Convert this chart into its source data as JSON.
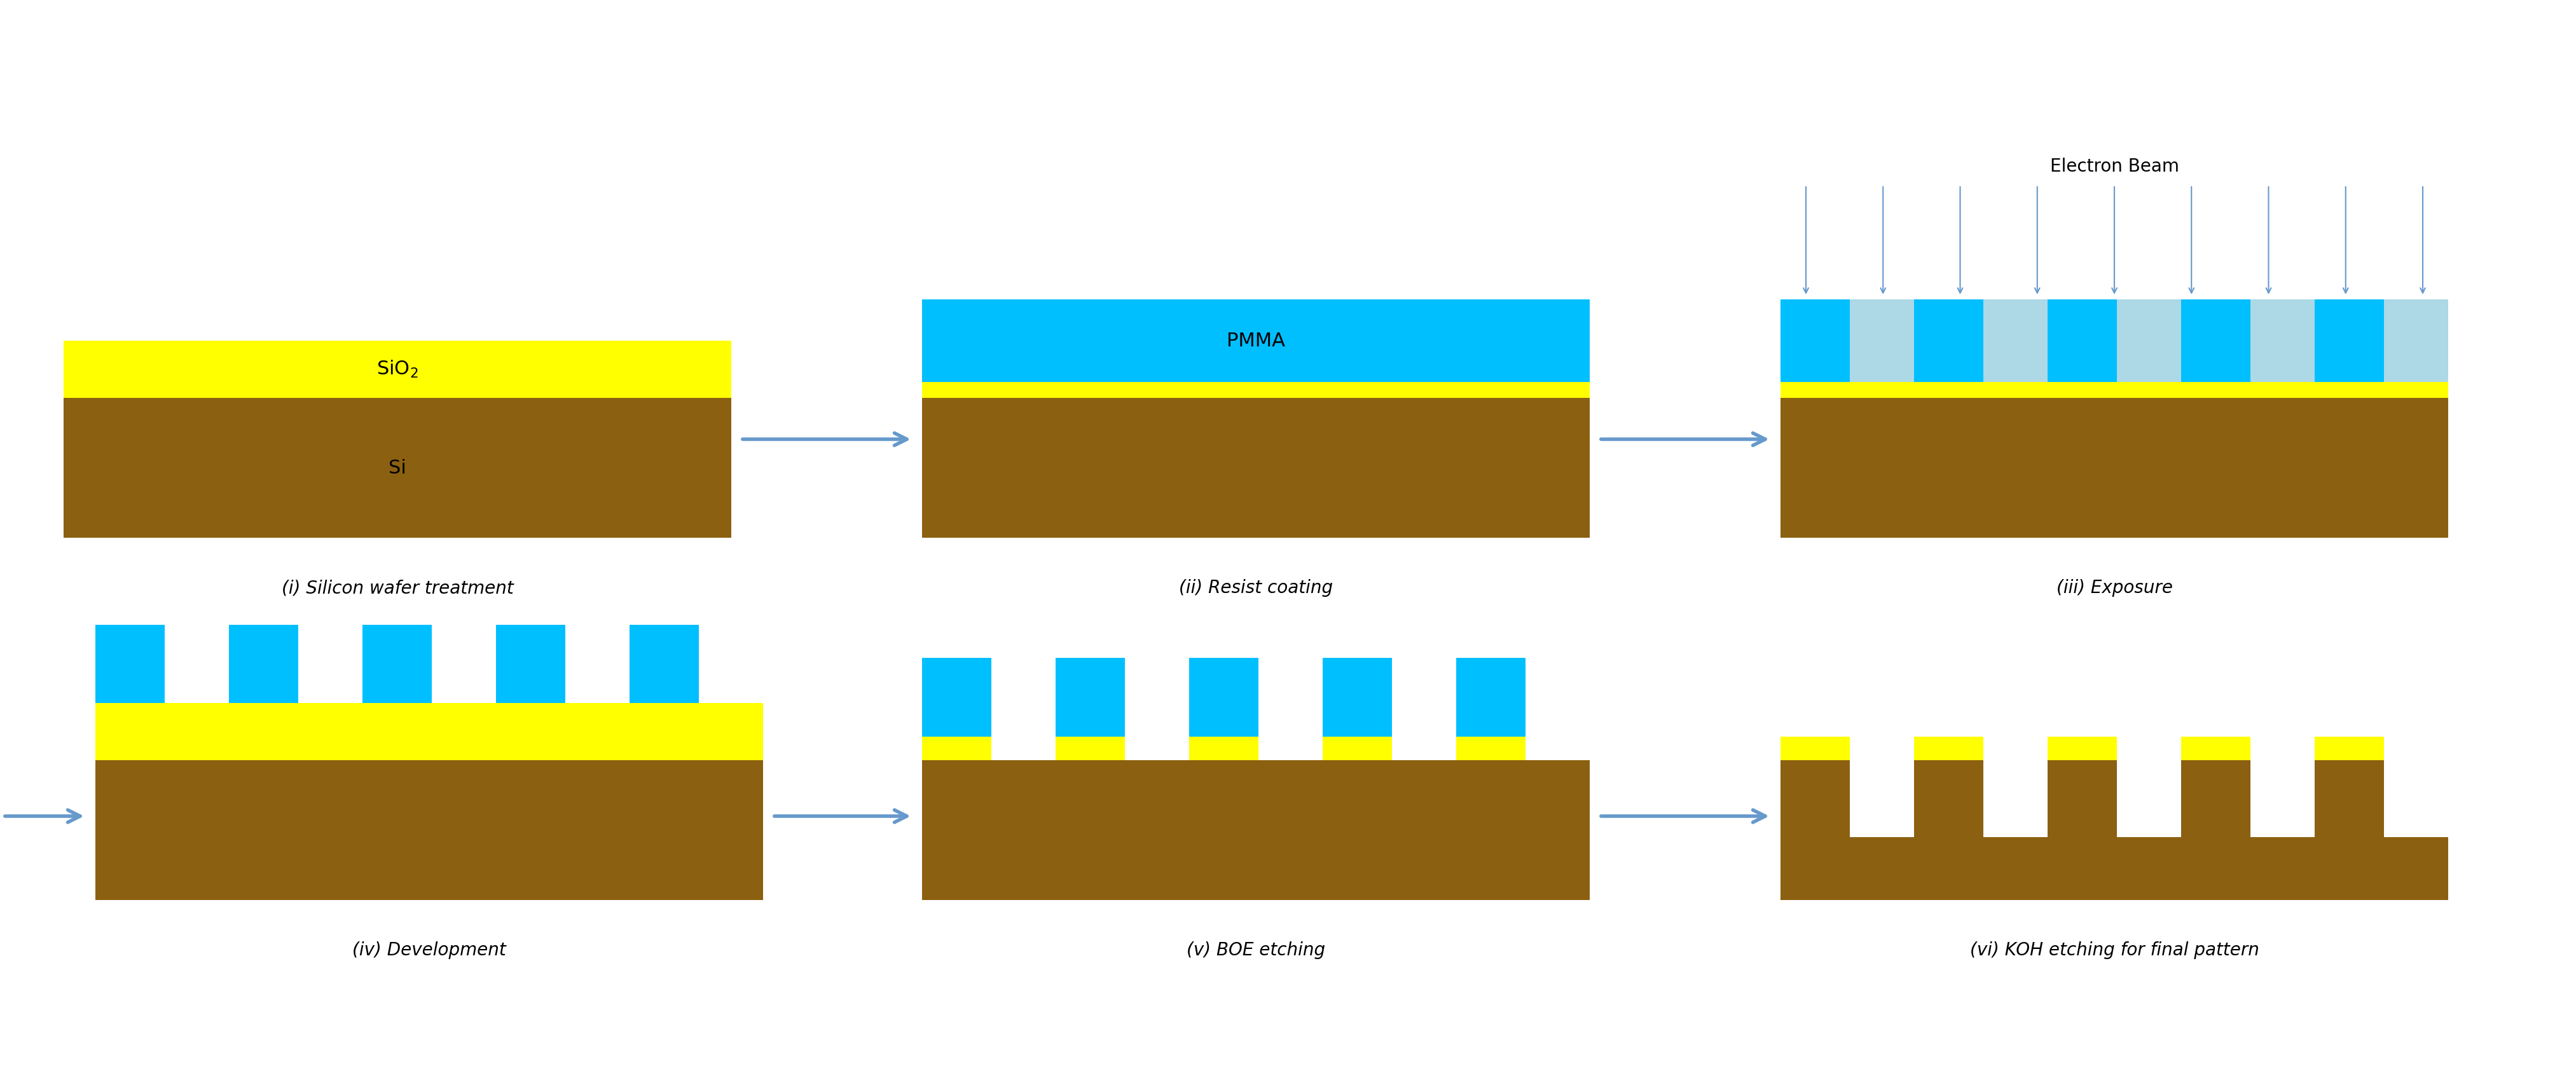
{
  "bg_color": "#ffffff",
  "colors": {
    "sio2": "#ffff00",
    "si": "#8B6010",
    "pmma": "#00BFFF",
    "pmma_exposed": "#ADD8E6",
    "arrow": "#6699CC",
    "text": "#000000"
  },
  "steps": [
    "(i) Silicon wafer treatment",
    "(ii) Resist coating",
    "(iii) Exposure",
    "(iv) Development",
    "(v) BOE etching",
    "(vi) KOH etching for final pattern"
  ],
  "font_size_label": 20,
  "font_size_text": 22,
  "electron_beam_label": "Electron Beam"
}
